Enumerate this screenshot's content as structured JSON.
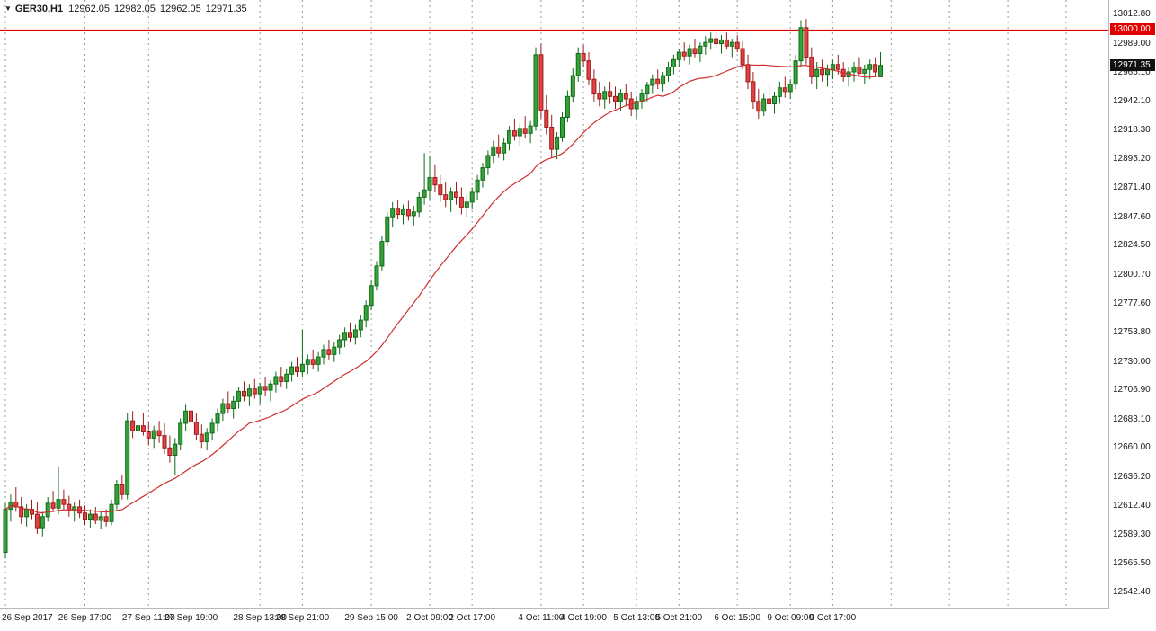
{
  "header": {
    "symbol": "GER30,H1",
    "open": "12962.05",
    "high": "12982.05",
    "low": "12962.05",
    "close": "12971.35",
    "dropdown_icon": "▼"
  },
  "colors": {
    "up": "#36a139",
    "up_border": "#0e6b16",
    "down": "#e04343",
    "down_border": "#9e1a1a",
    "ma": "#cf2e2e",
    "hline": "#e00000",
    "grid": "#999999",
    "current_tag_bg": "#111111",
    "tag_text": "#ffffff",
    "axis_text": "#1a1a1a",
    "background": "#ffffff"
  },
  "chart_data": {
    "type": "candlestick",
    "title": "GER30,H1",
    "symbol": "GER30",
    "timeframe": "H1",
    "ylim": [
      12530,
      13024.5
    ],
    "grid": "vertical-dashed",
    "y_ticks": [
      "13012.80",
      "12989.00",
      "12965.10",
      "12942.10",
      "12918.30",
      "12895.20",
      "12871.40",
      "12847.60",
      "12824.50",
      "12800.70",
      "12777.60",
      "12753.80",
      "12730.00",
      "12706.90",
      "12683.10",
      "12660.00",
      "12636.20",
      "12612.40",
      "12589.30",
      "12565.50",
      "12542.40"
    ],
    "hline": {
      "price": 13000.0,
      "label": "13000.00"
    },
    "current_price": {
      "price": 12971.35,
      "label": "12971.35"
    },
    "x_labels": [
      {
        "index": 0,
        "label": "26 Sep 2017"
      },
      {
        "index": 15,
        "label": "26 Sep 17:00"
      },
      {
        "index": 27,
        "label": "27 Sep 11:00"
      },
      {
        "index": 35,
        "label": "27 Sep 19:00"
      },
      {
        "index": 48,
        "label": "28 Sep 13:00"
      },
      {
        "index": 56,
        "label": "28 Sep 21:00"
      },
      {
        "index": 69,
        "label": "29 Sep 15:00"
      },
      {
        "index": 80,
        "label": "2 Oct 09:00"
      },
      {
        "index": 88,
        "label": "2 Oct 17:00"
      },
      {
        "index": 101,
        "label": "4 Oct 11:00"
      },
      {
        "index": 109,
        "label": "4 Oct 19:00"
      },
      {
        "index": 119,
        "label": "5 Oct 13:00"
      },
      {
        "index": 127,
        "label": "5 Oct 21:00"
      },
      {
        "index": 138,
        "label": "6 Oct 15:00"
      },
      {
        "index": 148,
        "label": "9 Oct 09:00"
      },
      {
        "index": 156,
        "label": "9 Oct 17:00"
      }
    ],
    "future_grid_indices": [
      167,
      178,
      189,
      200
    ],
    "ma": {
      "type": "sma",
      "period": 24
    },
    "candles": [
      [
        12575,
        12615,
        12570,
        12610
      ],
      [
        12610,
        12622,
        12600,
        12616
      ],
      [
        12616,
        12628,
        12608,
        12612
      ],
      [
        12612,
        12620,
        12598,
        12604
      ],
      [
        12604,
        12614,
        12596,
        12610
      ],
      [
        12610,
        12618,
        12602,
        12606
      ],
      [
        12606,
        12616,
        12590,
        12595
      ],
      [
        12595,
        12608,
        12588,
        12604
      ],
      [
        12604,
        12620,
        12600,
        12615
      ],
      [
        12615,
        12625,
        12608,
        12611
      ],
      [
        12611,
        12645,
        12606,
        12618
      ],
      [
        12618,
        12626,
        12610,
        12614
      ],
      [
        12614,
        12621,
        12604,
        12609
      ],
      [
        12609,
        12616,
        12600,
        12612
      ],
      [
        12612,
        12618,
        12603,
        12607
      ],
      [
        12607,
        12613,
        12597,
        12602
      ],
      [
        12602,
        12610,
        12595,
        12606
      ],
      [
        12606,
        12612,
        12598,
        12601
      ],
      [
        12601,
        12608,
        12594,
        12604
      ],
      [
        12604,
        12610,
        12596,
        12600
      ],
      [
        12600,
        12618,
        12597,
        12614
      ],
      [
        12614,
        12634,
        12610,
        12630
      ],
      [
        12630,
        12638,
        12618,
        12622
      ],
      [
        12622,
        12688,
        12618,
        12682
      ],
      [
        12682,
        12690,
        12668,
        12674
      ],
      [
        12674,
        12684,
        12666,
        12678
      ],
      [
        12678,
        12688,
        12670,
        12673
      ],
      [
        12673,
        12681,
        12662,
        12668
      ],
      [
        12668,
        12678,
        12660,
        12674
      ],
      [
        12674,
        12682,
        12664,
        12670
      ],
      [
        12670,
        12680,
        12655,
        12660
      ],
      [
        12660,
        12670,
        12648,
        12654
      ],
      [
        12654,
        12668,
        12638,
        12663
      ],
      [
        12663,
        12684,
        12658,
        12680
      ],
      [
        12680,
        12695,
        12674,
        12690
      ],
      [
        12690,
        12697,
        12676,
        12681
      ],
      [
        12681,
        12688,
        12666,
        12671
      ],
      [
        12671,
        12679,
        12660,
        12665
      ],
      [
        12665,
        12676,
        12658,
        12672
      ],
      [
        12672,
        12684,
        12666,
        12680
      ],
      [
        12680,
        12692,
        12674,
        12688
      ],
      [
        12688,
        12700,
        12682,
        12696
      ],
      [
        12696,
        12706,
        12688,
        12692
      ],
      [
        12692,
        12702,
        12684,
        12698
      ],
      [
        12698,
        12710,
        12692,
        12706
      ],
      [
        12706,
        12714,
        12698,
        12702
      ],
      [
        12702,
        12712,
        12694,
        12708
      ],
      [
        12708,
        12716,
        12700,
        12704
      ],
      [
        12704,
        12713,
        12696,
        12710
      ],
      [
        12710,
        12718,
        12702,
        12707
      ],
      [
        12707,
        12715,
        12698,
        12712
      ],
      [
        12712,
        12722,
        12705,
        12718
      ],
      [
        12718,
        12726,
        12710,
        12714
      ],
      [
        12714,
        12724,
        12708,
        12720
      ],
      [
        12720,
        12730,
        12714,
        12726
      ],
      [
        12726,
        12734,
        12718,
        12722
      ],
      [
        12722,
        12756,
        12718,
        12728
      ],
      [
        12728,
        12736,
        12720,
        12732
      ],
      [
        12732,
        12740,
        12724,
        12728
      ],
      [
        12728,
        12738,
        12722,
        12734
      ],
      [
        12734,
        12744,
        12728,
        12740
      ],
      [
        12740,
        12748,
        12732,
        12736
      ],
      [
        12736,
        12746,
        12730,
        12742
      ],
      [
        12742,
        12752,
        12736,
        12748
      ],
      [
        12748,
        12758,
        12742,
        12754
      ],
      [
        12754,
        12762,
        12746,
        12750
      ],
      [
        12750,
        12760,
        12744,
        12756
      ],
      [
        12756,
        12768,
        12750,
        12764
      ],
      [
        12764,
        12780,
        12758,
        12776
      ],
      [
        12776,
        12796,
        12772,
        12792
      ],
      [
        12792,
        12812,
        12788,
        12808
      ],
      [
        12808,
        12832,
        12804,
        12828
      ],
      [
        12828,
        12852,
        12824,
        12848
      ],
      [
        12848,
        12860,
        12840,
        12855
      ],
      [
        12855,
        12862,
        12846,
        12850
      ],
      [
        12850,
        12858,
        12842,
        12854
      ],
      [
        12854,
        12861,
        12845,
        12849
      ],
      [
        12849,
        12857,
        12841,
        12852
      ],
      [
        12852,
        12868,
        12848,
        12864
      ],
      [
        12864,
        12900,
        12858,
        12870
      ],
      [
        12870,
        12898,
        12862,
        12880
      ],
      [
        12880,
        12890,
        12868,
        12874
      ],
      [
        12874,
        12882,
        12860,
        12866
      ],
      [
        12866,
        12876,
        12856,
        12862
      ],
      [
        12862,
        12872,
        12852,
        12868
      ],
      [
        12868,
        12876,
        12858,
        12864
      ],
      [
        12864,
        12872,
        12850,
        12856
      ],
      [
        12856,
        12866,
        12848,
        12860
      ],
      [
        12860,
        12872,
        12854,
        12868
      ],
      [
        12868,
        12882,
        12862,
        12878
      ],
      [
        12878,
        12892,
        12872,
        12888
      ],
      [
        12888,
        12902,
        12882,
        12898
      ],
      [
        12898,
        12910,
        12892,
        12905
      ],
      [
        12905,
        12915,
        12896,
        12900
      ],
      [
        12900,
        12912,
        12894,
        12908
      ],
      [
        12908,
        12922,
        12902,
        12918
      ],
      [
        12918,
        12928,
        12910,
        12914
      ],
      [
        12914,
        12924,
        12906,
        12920
      ],
      [
        12920,
        12930,
        12912,
        12916
      ],
      [
        12916,
        12926,
        12908,
        12922
      ],
      [
        12922,
        12986,
        12918,
        12980
      ],
      [
        12980,
        12989,
        12928,
        12935
      ],
      [
        12935,
        12947,
        12915,
        12921
      ],
      [
        12921,
        12931,
        12896,
        12903
      ],
      [
        12903,
        12917,
        12895,
        12913
      ],
      [
        12913,
        12933,
        12909,
        12929
      ],
      [
        12929,
        12951,
        12925,
        12946
      ],
      [
        12946,
        12969,
        12941,
        12963
      ],
      [
        12963,
        12986,
        12958,
        12981
      ],
      [
        12981,
        12988,
        12970,
        12975
      ],
      [
        12975,
        12982,
        12955,
        12960
      ],
      [
        12960,
        12968,
        12942,
        12948
      ],
      [
        12948,
        12958,
        12938,
        12944
      ],
      [
        12944,
        12954,
        12936,
        12950
      ],
      [
        12950,
        12958,
        12940,
        12946
      ],
      [
        12946,
        12954,
        12936,
        12942
      ],
      [
        12942,
        12952,
        12934,
        12948
      ],
      [
        12948,
        12956,
        12938,
        12944
      ],
      [
        12944,
        12950,
        12930,
        12936
      ],
      [
        12936,
        12946,
        12928,
        12942
      ],
      [
        12942,
        12952,
        12936,
        12948
      ],
      [
        12948,
        12958,
        12942,
        12955
      ],
      [
        12955,
        12964,
        12948,
        12960
      ],
      [
        12960,
        12968,
        12952,
        12956
      ],
      [
        12956,
        12966,
        12950,
        12963
      ],
      [
        12963,
        12974,
        12958,
        12970
      ],
      [
        12970,
        12980,
        12964,
        12976
      ],
      [
        12976,
        12985,
        12970,
        12982
      ],
      [
        12982,
        12990,
        12975,
        12979
      ],
      [
        12979,
        12988,
        12972,
        12985
      ],
      [
        12985,
        12993,
        12978,
        12981
      ],
      [
        12981,
        12990,
        12974,
        12987
      ],
      [
        12987,
        12995,
        12980,
        12990
      ],
      [
        12990,
        12998,
        12984,
        12993
      ],
      [
        12993,
        12999,
        12986,
        12989
      ],
      [
        12989,
        12996,
        12981,
        12992
      ],
      [
        12992,
        12998,
        12984,
        12987
      ],
      [
        12987,
        12993,
        12978,
        12990
      ],
      [
        12990,
        12996,
        12982,
        12985
      ],
      [
        12985,
        12991,
        12968,
        12972
      ],
      [
        12972,
        12980,
        12952,
        12958
      ],
      [
        12958,
        12966,
        12936,
        12942
      ],
      [
        12942,
        12952,
        12928,
        12934
      ],
      [
        12934,
        12948,
        12930,
        12944
      ],
      [
        12944,
        12956,
        12938,
        12940
      ],
      [
        12940,
        12950,
        12932,
        12946
      ],
      [
        12946,
        12958,
        12940,
        12953
      ],
      [
        12953,
        12962,
        12945,
        12950
      ],
      [
        12950,
        12960,
        12944,
        12956
      ],
      [
        12956,
        12980,
        12952,
        12975
      ],
      [
        12975,
        13008,
        12970,
        13002
      ],
      [
        13002,
        13009,
        12972,
        12978
      ],
      [
        12978,
        12986,
        12956,
        12962
      ],
      [
        12962,
        12974,
        12952,
        12968
      ],
      [
        12968,
        12976,
        12958,
        12964
      ],
      [
        12964,
        12972,
        12954,
        12968
      ],
      [
        12968,
        12976,
        12960,
        12972
      ],
      [
        12972,
        12980,
        12964,
        12968
      ],
      [
        12968,
        12974,
        12958,
        12962
      ],
      [
        12962,
        12970,
        12954,
        12966
      ],
      [
        12966,
        12974,
        12958,
        12970
      ],
      [
        12970,
        12978,
        12962,
        12965
      ],
      [
        12965,
        12972,
        12956,
        12968
      ],
      [
        12968,
        12976,
        12960,
        12972
      ],
      [
        12972,
        12978,
        12962,
        12966
      ],
      [
        12962.05,
        12982.05,
        12962.05,
        12971.35
      ]
    ]
  }
}
